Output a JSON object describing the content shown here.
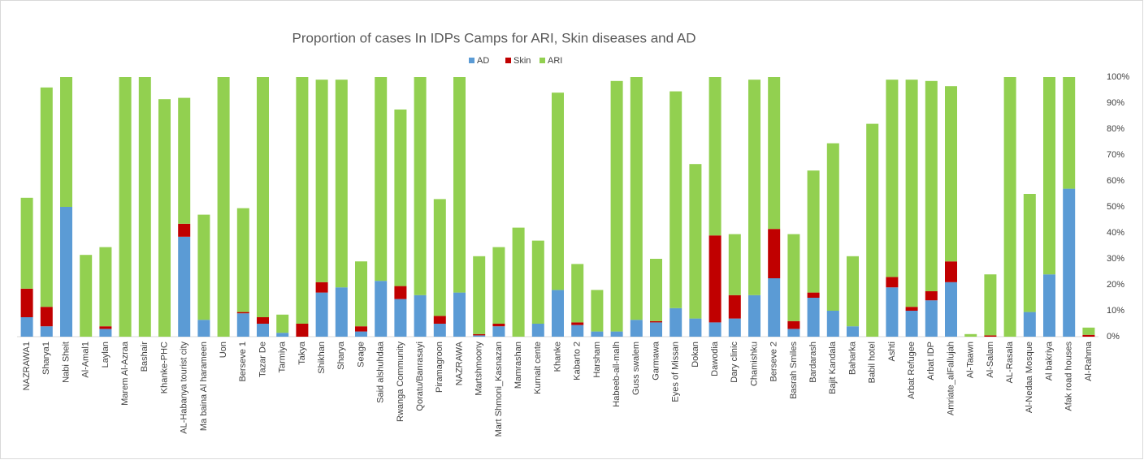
{
  "chart_data": {
    "type": "bar",
    "stacked": true,
    "title": "Proportion of cases In IDPs Camps for ARI, Skin diseases and AD",
    "categories": [
      "NAZRAWA1",
      "Sharya1",
      "Nabi Sheit",
      "Al-Amal1",
      "Laylan",
      "Marem Al-Azraa",
      "Bashair",
      "Khanke-PHC",
      "AL-Habanya tourist city",
      "Ma baina Al harameen",
      "Uon",
      "Berseve 1",
      "Tazar De",
      "Tarmiya",
      "Takya",
      "Shikhan",
      "Sharya",
      "Seage",
      "Said alshuhdaa",
      "Rwanga Community",
      "Qoratu/Banrasayi",
      "Piramagroon",
      "NAZRAWA",
      "Martshmoony",
      "Mart Shmoni_Kasnazan",
      "Mamrashan",
      "Kurnait cente",
      "Khanke",
      "Kabarto 2",
      "Harsham",
      "Habeeb-all-malh",
      "Guss swalem",
      "Garmawa",
      "Eyes of Missan",
      "Dokan",
      "Dawodia",
      "Dary clinic",
      "Chamishku",
      "Berseve 2",
      "Basrah Smiles",
      "Bardarash",
      "Bajit Kandala",
      "Baharka",
      "Babil hotel",
      "Ashti",
      "Arbat Refugee",
      "Arbat IDP",
      "Amriate_alFallujah",
      "Al-Taawn",
      "Al-Salam",
      "AL-Rasala",
      "Al-Nedaa Mosque",
      "Al bakriya",
      "Afak road houses",
      "Al-Rahma"
    ],
    "series": [
      {
        "name": "AD",
        "color": "#5b9bd5",
        "values": [
          7.5,
          4,
          50,
          0,
          3,
          0,
          0,
          0,
          38.5,
          6.5,
          0,
          9,
          5,
          1.5,
          0,
          17,
          19,
          2,
          21.5,
          14.5,
          16,
          5,
          17,
          0.5,
          4,
          0,
          5,
          18,
          4.5,
          2,
          2,
          6.5,
          5.5,
          11,
          7,
          5.5,
          7,
          16,
          22.5,
          3,
          15,
          10,
          4,
          0,
          19,
          10,
          14,
          21,
          0,
          0,
          0,
          9.5,
          24,
          57,
          0
        ]
      },
      {
        "name": "Skin",
        "color": "#c00000",
        "values": [
          11,
          7.5,
          0,
          0,
          1,
          0,
          0,
          0,
          5,
          0,
          0,
          0.5,
          2.5,
          0,
          5,
          4,
          0,
          2,
          0,
          5,
          0,
          3,
          0,
          0.5,
          1,
          0,
          0,
          0,
          1,
          0,
          0,
          0,
          0.5,
          0,
          0,
          33.5,
          9,
          0,
          19,
          3,
          2,
          0,
          0,
          0,
          4,
          1.5,
          3.5,
          8,
          0,
          0.5,
          0,
          0,
          0,
          0,
          0.7
        ]
      },
      {
        "name": "ARI",
        "color": "#92d050",
        "values": [
          35,
          84.5,
          50,
          31.5,
          30.5,
          100,
          100,
          91.5,
          48.5,
          40.5,
          100,
          40,
          92.5,
          7,
          95,
          78,
          80,
          25,
          78.5,
          68,
          84,
          45,
          83,
          30,
          29.5,
          42,
          32,
          76,
          22.5,
          16,
          96.5,
          93.5,
          24,
          83.5,
          59.5,
          61,
          23.5,
          83,
          58.5,
          33.5,
          47,
          64.5,
          27,
          82,
          76,
          87.5,
          81,
          67.5,
          1,
          23.5,
          100,
          45.5,
          76,
          43,
          2.8
        ]
      }
    ],
    "ylim": [
      0,
      100
    ],
    "yticks": [
      {
        "value": 0,
        "label": "0%"
      },
      {
        "value": 10,
        "label": "10%"
      },
      {
        "value": 20,
        "label": "20%"
      },
      {
        "value": 30,
        "label": "30%"
      },
      {
        "value": 40,
        "label": "40%"
      },
      {
        "value": 50,
        "label": "50%"
      },
      {
        "value": 60,
        "label": "60%"
      },
      {
        "value": 70,
        "label": "70%"
      },
      {
        "value": 80,
        "label": "80%"
      },
      {
        "value": 90,
        "label": "90%"
      },
      {
        "value": 100,
        "label": "100%"
      }
    ],
    "grid": false,
    "legend": "top"
  }
}
